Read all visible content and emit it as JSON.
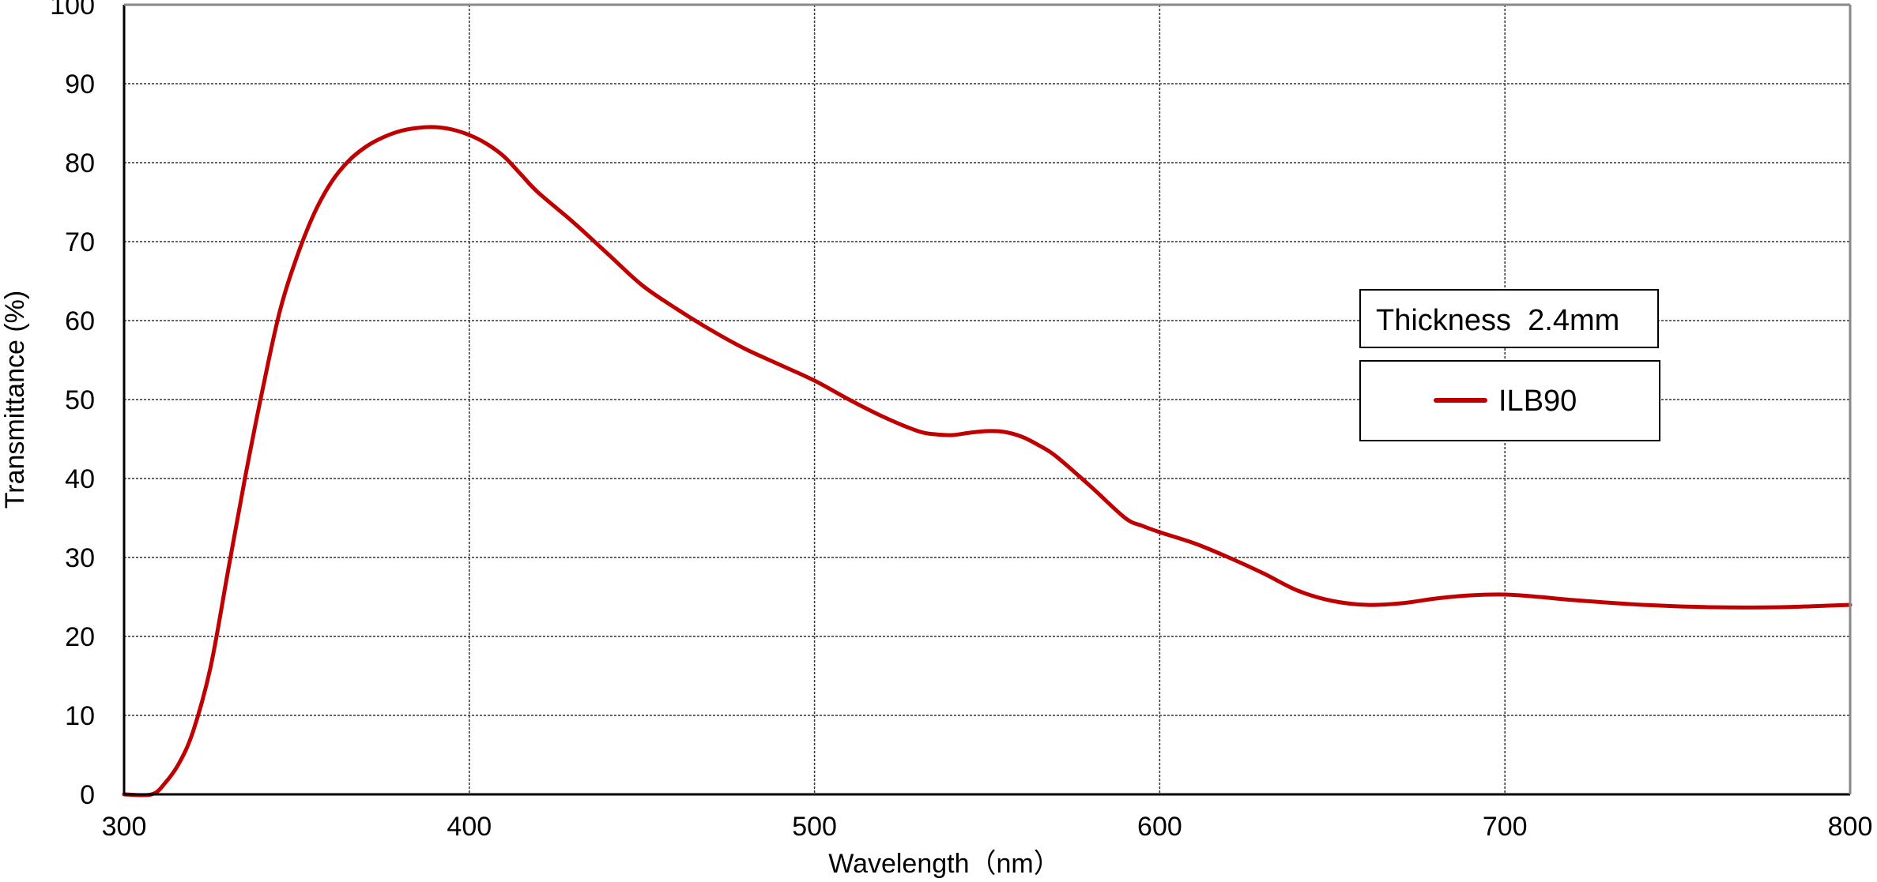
{
  "chart_data": {
    "type": "line",
    "title": "",
    "xlabel": "Wavelength（nm）",
    "ylabel": "Transmittance (%)",
    "xlim": [
      300,
      800
    ],
    "ylim": [
      0,
      100
    ],
    "x_ticks": [
      300,
      400,
      500,
      600,
      700,
      800
    ],
    "y_ticks": [
      0,
      10,
      20,
      30,
      40,
      50,
      60,
      70,
      80,
      90,
      100
    ],
    "grid": true,
    "legend_position": "upper-right-inside",
    "annotation": "Thickness  2.4mm",
    "series": [
      {
        "name": "ILB90",
        "color": "#c00000",
        "x": [
          300,
          308,
          312,
          316,
          320,
          325,
          330,
          335,
          340,
          345,
          350,
          355,
          360,
          365,
          370,
          375,
          380,
          385,
          390,
          395,
          400,
          405,
          410,
          415,
          420,
          430,
          440,
          450,
          460,
          470,
          480,
          490,
          500,
          510,
          520,
          530,
          535,
          540,
          545,
          550,
          555,
          560,
          565,
          570,
          580,
          590,
          595,
          600,
          610,
          620,
          630,
          640,
          650,
          660,
          670,
          680,
          690,
          700,
          710,
          720,
          740,
          760,
          780,
          800
        ],
        "y": [
          0,
          0,
          1.5,
          4,
          8,
          16,
          28,
          40,
          51,
          61,
          68,
          73.5,
          77.5,
          80.2,
          82,
          83.2,
          84,
          84.4,
          84.5,
          84.2,
          83.5,
          82.4,
          80.8,
          78.5,
          76.2,
          72.5,
          68.5,
          64.5,
          61.5,
          58.8,
          56.4,
          54.4,
          52.4,
          50,
          47.8,
          46,
          45.6,
          45.5,
          45.8,
          46,
          45.9,
          45.3,
          44.2,
          42.8,
          39,
          35,
          34,
          33.2,
          31.8,
          30,
          28,
          25.8,
          24.5,
          24,
          24.2,
          24.8,
          25.2,
          25.3,
          25,
          24.6,
          24,
          23.7,
          23.7,
          24
        ]
      }
    ]
  },
  "legend": {
    "annotation_label": "Thickness  2.4mm",
    "series_label": "ILB90"
  }
}
